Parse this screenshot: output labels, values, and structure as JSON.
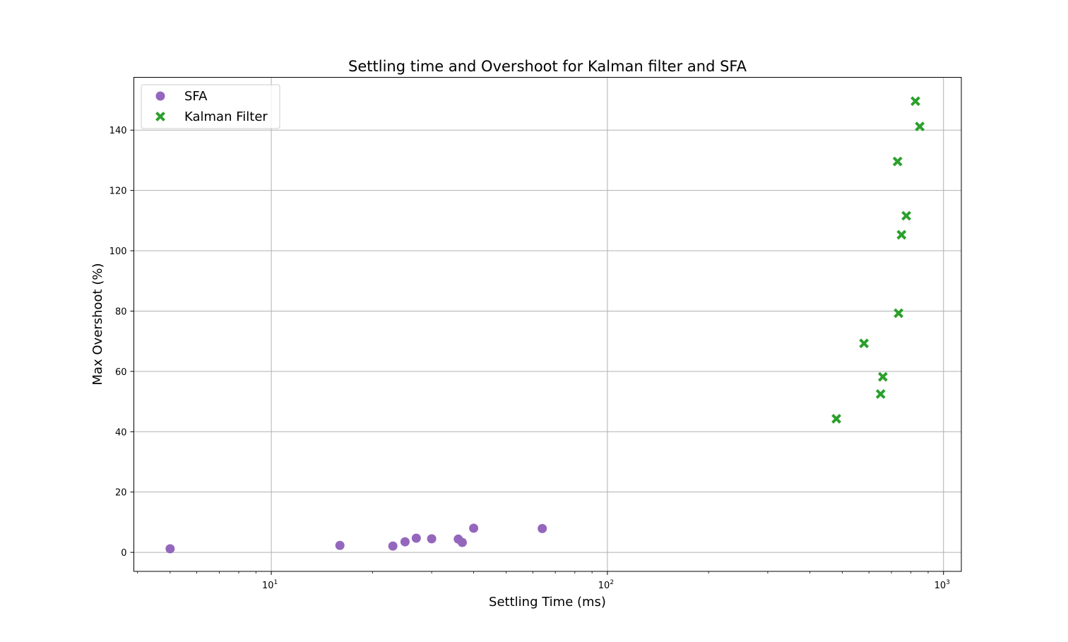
{
  "chart_data": {
    "type": "scatter",
    "title": "Settling time and Overshoot for Kalman filter and SFA",
    "xlabel": "Settling Time (ms)",
    "ylabel": "Max Overshoot (%)",
    "xscale": "log",
    "xlim": [
      3.9,
      1130
    ],
    "ylim": [
      -6.3,
      157.5
    ],
    "xticks": [
      {
        "value": 10,
        "base": "10",
        "exp": "1"
      },
      {
        "value": 100,
        "base": "10",
        "exp": "2"
      },
      {
        "value": 1000,
        "base": "10",
        "exp": "3"
      }
    ],
    "yticks": [
      0,
      20,
      40,
      60,
      80,
      100,
      120,
      140
    ],
    "grid": true,
    "legend": "upper left",
    "series": [
      {
        "name": "SFA",
        "marker": "circle",
        "color": "#9467bd",
        "points": [
          {
            "x": 5.0,
            "y": 1.2
          },
          {
            "x": 16.0,
            "y": 2.3
          },
          {
            "x": 23.0,
            "y": 2.1
          },
          {
            "x": 25.0,
            "y": 3.5
          },
          {
            "x": 27.0,
            "y": 4.7
          },
          {
            "x": 30.0,
            "y": 4.5
          },
          {
            "x": 36.0,
            "y": 4.4
          },
          {
            "x": 37.0,
            "y": 3.3
          },
          {
            "x": 40.0,
            "y": 8.0
          },
          {
            "x": 64.0,
            "y": 7.9
          }
        ]
      },
      {
        "name": "Kalman Filter",
        "marker": "x",
        "color": "#2ca02c",
        "points": [
          {
            "x": 480,
            "y": 44.3
          },
          {
            "x": 580,
            "y": 69.3
          },
          {
            "x": 650,
            "y": 52.5
          },
          {
            "x": 660,
            "y": 58.2
          },
          {
            "x": 730,
            "y": 129.6
          },
          {
            "x": 735,
            "y": 79.3
          },
          {
            "x": 750,
            "y": 105.3
          },
          {
            "x": 775,
            "y": 111.6
          },
          {
            "x": 825,
            "y": 149.6
          },
          {
            "x": 850,
            "y": 141.2
          }
        ]
      }
    ]
  }
}
